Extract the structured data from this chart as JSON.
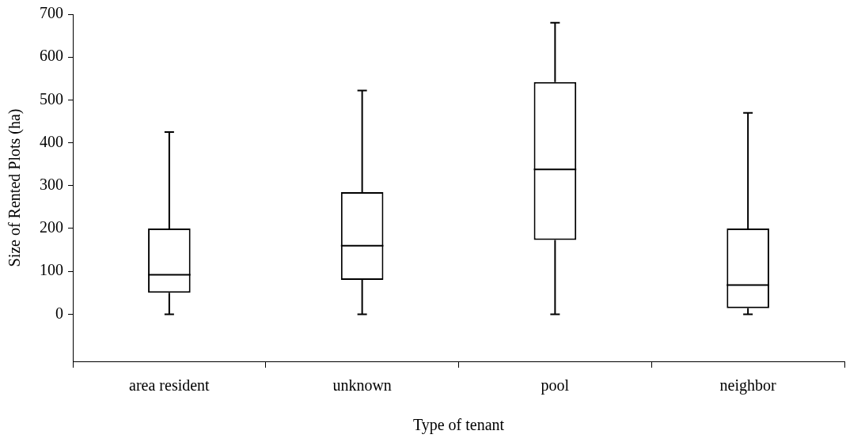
{
  "chart_data": {
    "type": "box",
    "xlabel": "Type of tenant",
    "ylabel": "Size of Rented Plots (ha)",
    "color": "#000000",
    "categories": [
      "area resident",
      "unknown",
      "pool",
      "neighbor"
    ],
    "boxes": [
      {
        "low": 0,
        "q1": 50,
        "median": 92,
        "q3": 200,
        "high": 425
      },
      {
        "low": 0,
        "q1": 80,
        "median": 160,
        "q3": 285,
        "high": 522
      },
      {
        "low": 0,
        "q1": 173,
        "median": 338,
        "q3": 542,
        "high": 680
      },
      {
        "low": 0,
        "q1": 14,
        "median": 68,
        "q3": 200,
        "high": 470
      }
    ],
    "ylim": [
      -110,
      700
    ],
    "yticks": [
      0,
      100,
      200,
      300,
      400,
      500,
      600,
      700
    ]
  }
}
